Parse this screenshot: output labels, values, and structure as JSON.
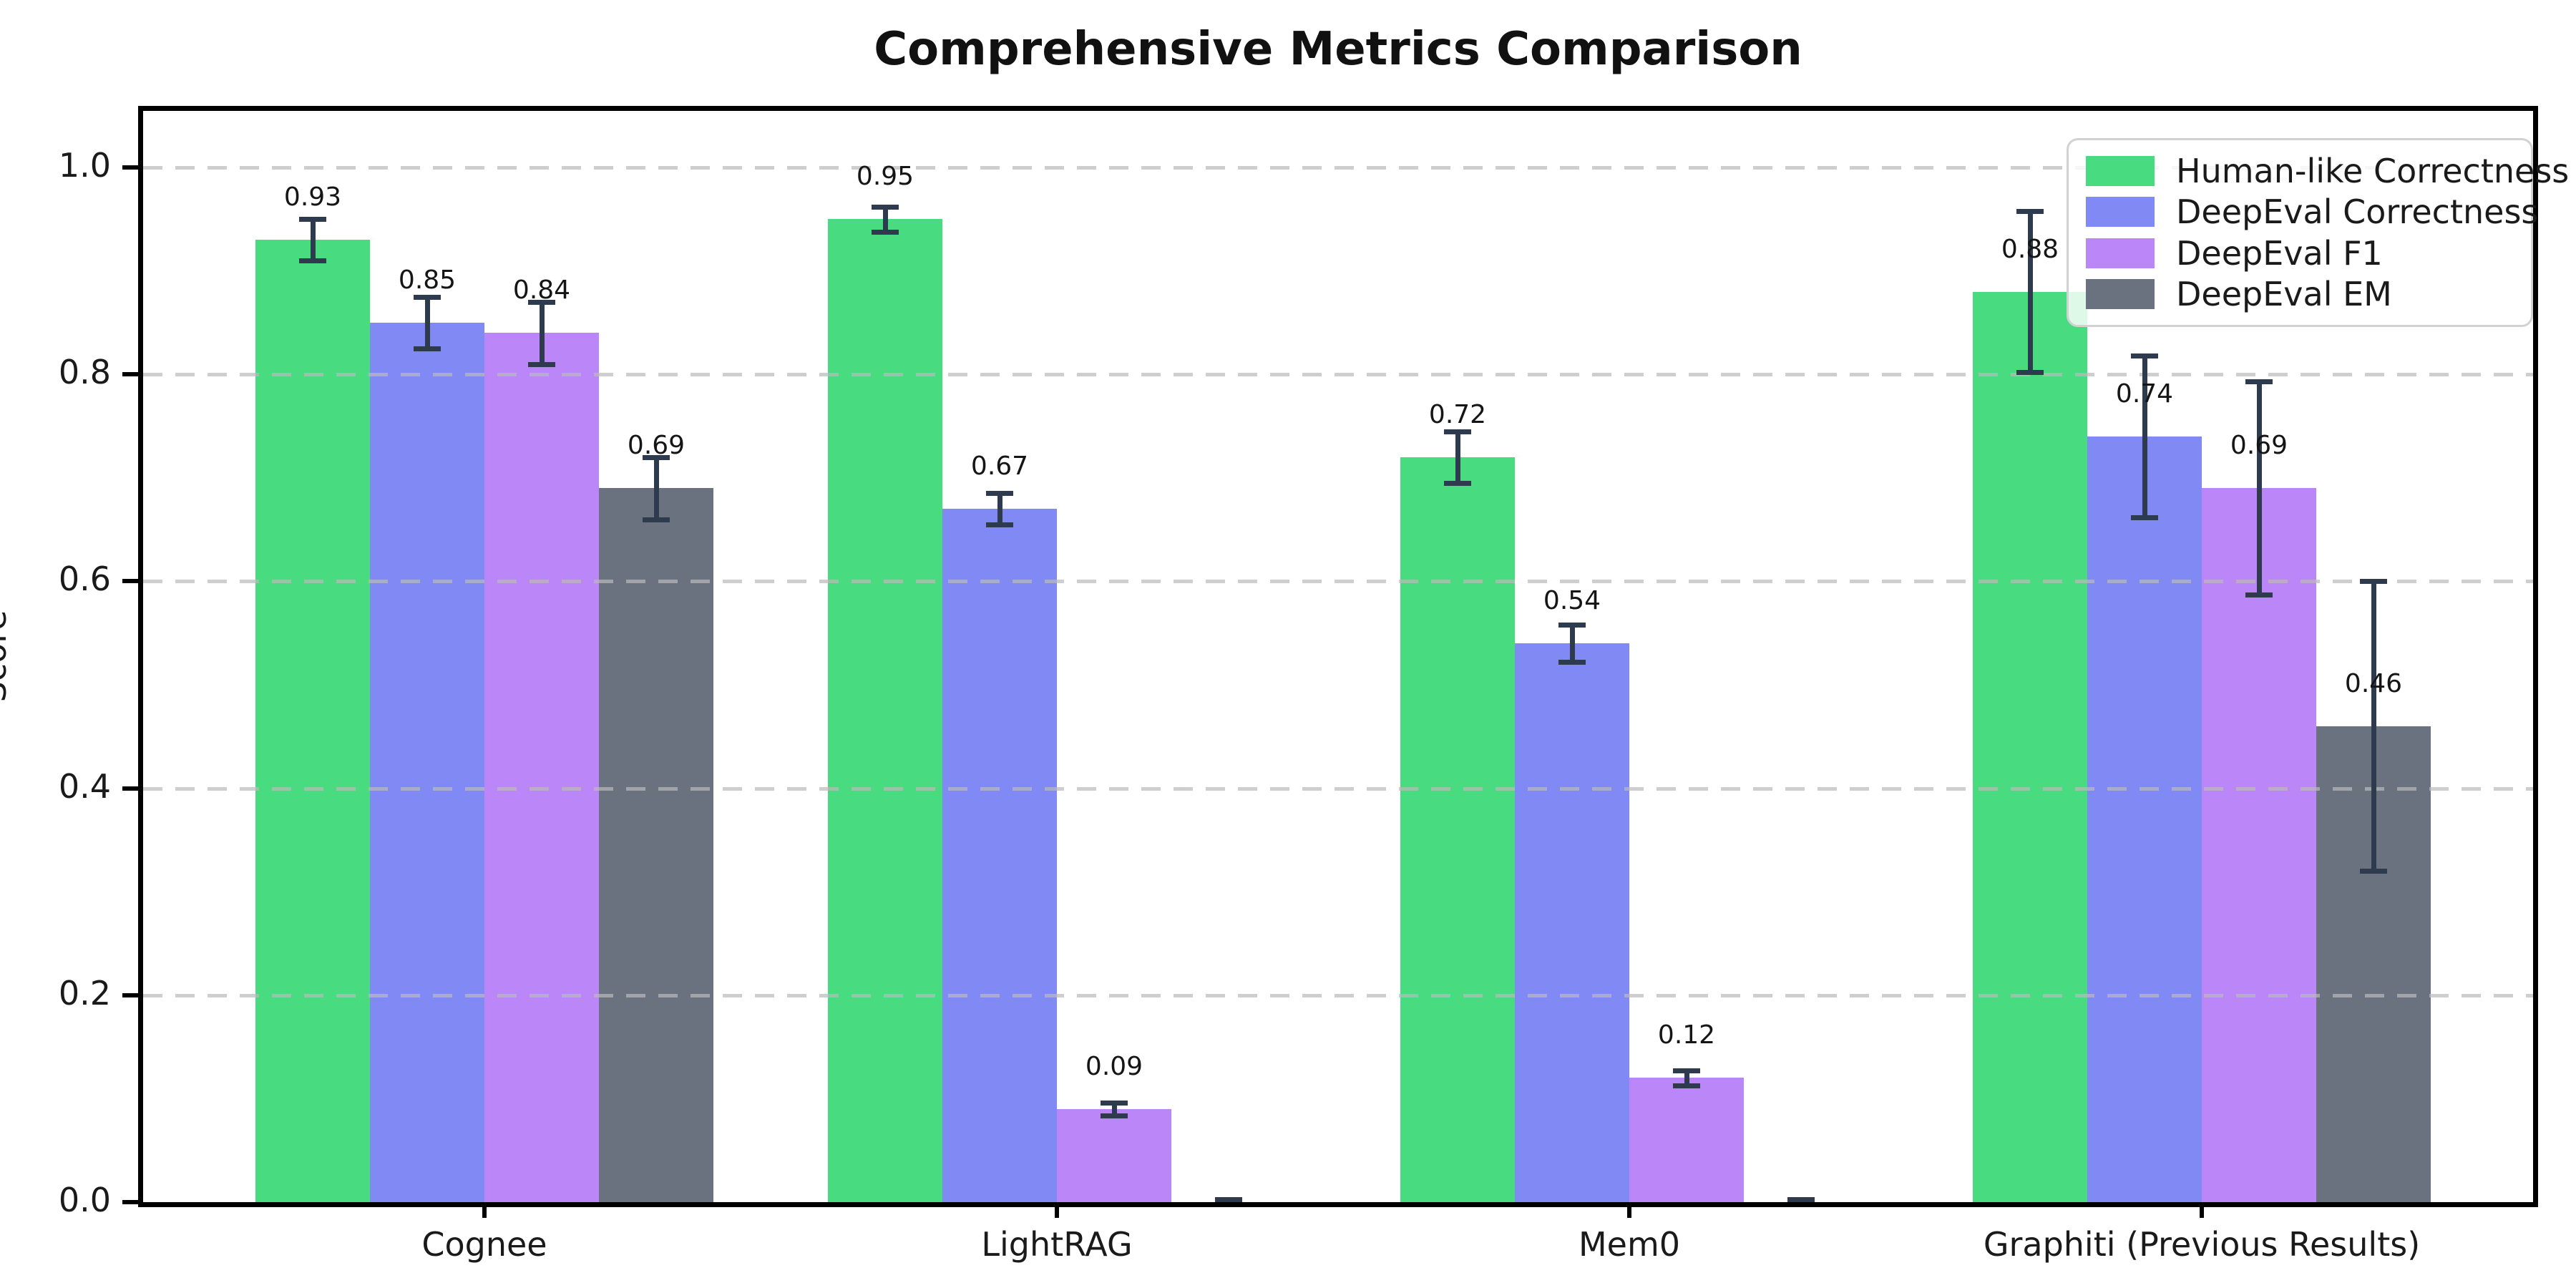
{
  "chart_data": {
    "type": "bar",
    "title": "Comprehensive Metrics Comparison",
    "ylabel": "Score",
    "ylim": [
      0.0,
      1.05
    ],
    "yticks": [
      "0.0",
      "0.2",
      "0.4",
      "0.6",
      "0.8",
      "1.0"
    ],
    "grid": "horizontal-dashed",
    "grid_on": true,
    "legend_position": "upper-right",
    "error_bar_color": "#2e3a4d",
    "categories": [
      "Cognee",
      "LightRAG",
      "Mem0",
      "Graphiti (Previous Results)"
    ],
    "series": [
      {
        "name": "Human-like Correctness",
        "color": "#48db80",
        "values": [
          0.93,
          0.95,
          0.72,
          0.88
        ],
        "errors": [
          0.02,
          0.012,
          0.025,
          0.078
        ],
        "labels": [
          "0.93",
          "0.95",
          "0.72",
          "0.88"
        ]
      },
      {
        "name": "DeepEval Correctness",
        "color": "#8189f5",
        "values": [
          0.85,
          0.67,
          0.54,
          0.74
        ],
        "errors": [
          0.025,
          0.015,
          0.018,
          0.078
        ],
        "labels": [
          "0.85",
          "0.67",
          "0.54",
          "0.74"
        ]
      },
      {
        "name": "DeepEval F1",
        "color": "#bb86f7",
        "values": [
          0.84,
          0.09,
          0.12,
          0.69
        ],
        "errors": [
          0.03,
          0.006,
          0.007,
          0.103
        ],
        "labels": [
          "0.84",
          "0.09",
          "0.12",
          "0.69"
        ]
      },
      {
        "name": "DeepEval EM",
        "color": "#6a7280",
        "values": [
          0.69,
          0.0,
          0.0,
          0.46
        ],
        "errors": [
          0.03,
          0.003,
          0.003,
          0.14
        ],
        "labels": [
          "0.69",
          "",
          "",
          "0.46"
        ]
      }
    ]
  }
}
